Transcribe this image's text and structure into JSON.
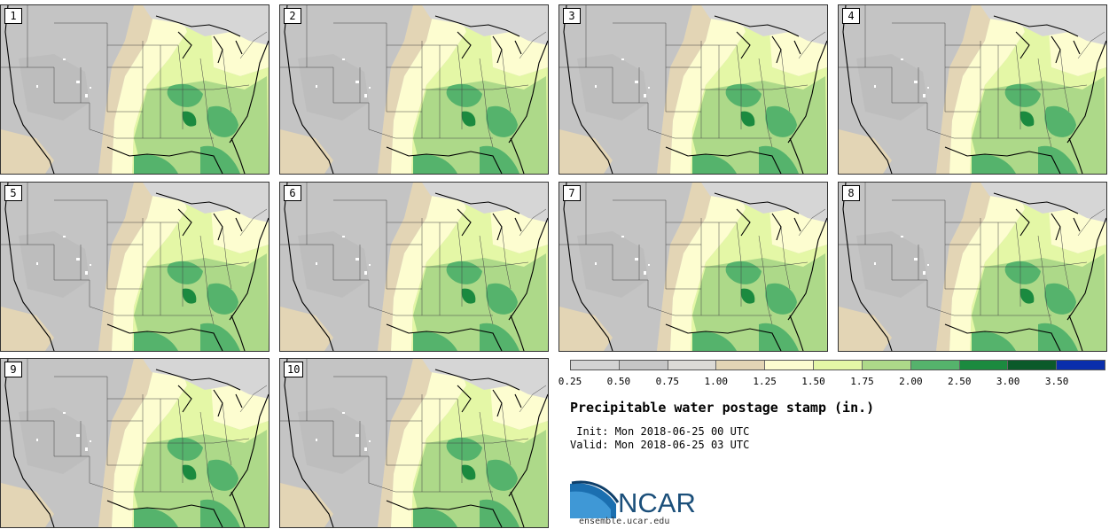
{
  "panels": [
    {
      "label": "1"
    },
    {
      "label": "2"
    },
    {
      "label": "3"
    },
    {
      "label": "4"
    },
    {
      "label": "5"
    },
    {
      "label": "6"
    },
    {
      "label": "7"
    },
    {
      "label": "8"
    },
    {
      "label": "9"
    },
    {
      "label": "10"
    }
  ],
  "legend": {
    "colors": [
      "#d3d3d3",
      "#c6c6c6",
      "#dcdad6",
      "#e3d5b5",
      "#fdfdd0",
      "#e4f7a6",
      "#add989",
      "#55b36c",
      "#1b8a3f",
      "#0b5a2a",
      "#0a2eac"
    ],
    "ticks": [
      "0.25",
      "0.50",
      "0.75",
      "1.00",
      "1.25",
      "1.50",
      "1.75",
      "2.00",
      "2.50",
      "3.00",
      "3.50"
    ]
  },
  "title": "Precipitable water postage stamp (in.)",
  "init": " Init: Mon 2018-06-25 00 UTC",
  "valid": "Valid: Mon 2018-06-25 03 UTC",
  "logo": {
    "text": "NCAR",
    "url": "ensemble.ucar.edu"
  }
}
